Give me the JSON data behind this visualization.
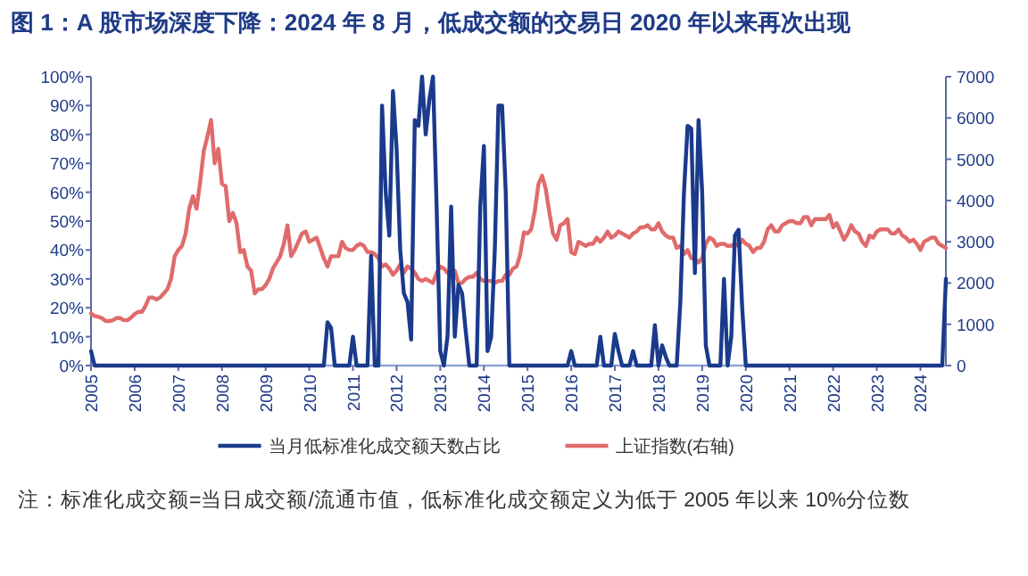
{
  "chart_data": {
    "type": "line",
    "title": "图 1：A 股市场深度下降：2024 年 8 月，低成交额的交易日 2020 年以来再次出现",
    "annotations": [
      "注：标准化成交额=当日成交额/流通市值，低标准化成交额定义为低于 2005 年以来 10%分位数"
    ],
    "x": [
      "2005-01",
      "2005-02",
      "2005-03",
      "2005-04",
      "2005-05",
      "2005-06",
      "2005-07",
      "2005-08",
      "2005-09",
      "2005-10",
      "2005-11",
      "2005-12",
      "2006-01",
      "2006-02",
      "2006-03",
      "2006-04",
      "2006-05",
      "2006-06",
      "2006-07",
      "2006-08",
      "2006-09",
      "2006-10",
      "2006-11",
      "2006-12",
      "2007-01",
      "2007-02",
      "2007-03",
      "2007-04",
      "2007-05",
      "2007-06",
      "2007-07",
      "2007-08",
      "2007-09",
      "2007-10",
      "2007-11",
      "2007-12",
      "2008-01",
      "2008-02",
      "2008-03",
      "2008-04",
      "2008-05",
      "2008-06",
      "2008-07",
      "2008-08",
      "2008-09",
      "2008-10",
      "2008-11",
      "2008-12",
      "2009-01",
      "2009-02",
      "2009-03",
      "2009-04",
      "2009-05",
      "2009-06",
      "2009-07",
      "2009-08",
      "2009-09",
      "2009-10",
      "2009-11",
      "2009-12",
      "2010-01",
      "2010-02",
      "2010-03",
      "2010-04",
      "2010-05",
      "2010-06",
      "2010-07",
      "2010-08",
      "2010-09",
      "2010-10",
      "2010-11",
      "2010-12",
      "2011-01",
      "2011-02",
      "2011-03",
      "2011-04",
      "2011-05",
      "2011-06",
      "2011-07",
      "2011-08",
      "2011-09",
      "2011-10",
      "2011-11",
      "2011-12",
      "2012-01",
      "2012-02",
      "2012-03",
      "2012-04",
      "2012-05",
      "2012-06",
      "2012-07",
      "2012-08",
      "2012-09",
      "2012-10",
      "2012-11",
      "2012-12",
      "2013-01",
      "2013-02",
      "2013-03",
      "2013-04",
      "2013-05",
      "2013-06",
      "2013-07",
      "2013-08",
      "2013-09",
      "2013-10",
      "2013-11",
      "2013-12",
      "2014-01",
      "2014-02",
      "2014-03",
      "2014-04",
      "2014-05",
      "2014-06",
      "2014-07",
      "2014-08",
      "2014-09",
      "2014-10",
      "2014-11",
      "2014-12",
      "2015-01",
      "2015-02",
      "2015-03",
      "2015-04",
      "2015-05",
      "2015-06",
      "2015-07",
      "2015-08",
      "2015-09",
      "2015-10",
      "2015-11",
      "2015-12",
      "2016-01",
      "2016-02",
      "2016-03",
      "2016-04",
      "2016-05",
      "2016-06",
      "2016-07",
      "2016-08",
      "2016-09",
      "2016-10",
      "2016-11",
      "2016-12",
      "2017-01",
      "2017-02",
      "2017-03",
      "2017-04",
      "2017-05",
      "2017-06",
      "2017-07",
      "2017-08",
      "2017-09",
      "2017-10",
      "2017-11",
      "2017-12",
      "2018-01",
      "2018-02",
      "2018-03",
      "2018-04",
      "2018-05",
      "2018-06",
      "2018-07",
      "2018-08",
      "2018-09",
      "2018-10",
      "2018-11",
      "2018-12",
      "2019-01",
      "2019-02",
      "2019-03",
      "2019-04",
      "2019-05",
      "2019-06",
      "2019-07",
      "2019-08",
      "2019-09",
      "2019-10",
      "2019-11",
      "2019-12",
      "2020-01",
      "2020-02",
      "2020-03",
      "2020-04",
      "2020-05",
      "2020-06",
      "2020-07",
      "2020-08",
      "2020-09",
      "2020-10",
      "2020-11",
      "2020-12",
      "2021-01",
      "2021-02",
      "2021-03",
      "2021-04",
      "2021-05",
      "2021-06",
      "2021-07",
      "2021-08",
      "2021-09",
      "2021-10",
      "2021-11",
      "2021-12",
      "2022-01",
      "2022-02",
      "2022-03",
      "2022-04",
      "2022-05",
      "2022-06",
      "2022-07",
      "2022-08",
      "2022-09",
      "2022-10",
      "2022-11",
      "2022-12",
      "2023-01",
      "2023-02",
      "2023-03",
      "2023-04",
      "2023-05",
      "2023-06",
      "2023-07",
      "2023-08",
      "2023-09",
      "2023-10",
      "2023-11",
      "2023-12",
      "2024-01",
      "2024-02",
      "2024-03",
      "2024-04",
      "2024-05",
      "2024-06",
      "2024-07",
      "2024-08"
    ],
    "xlim": [
      "2005-01",
      "2024-08"
    ],
    "xticks": [
      "2005",
      "2006",
      "2007",
      "2008",
      "2009",
      "2010",
      "2011",
      "2012",
      "2013",
      "2014",
      "2015",
      "2016",
      "2017",
      "2018",
      "2019",
      "2020",
      "2021",
      "2022",
      "2023",
      "2024"
    ],
    "ylim": [
      0,
      100
    ],
    "yticks": [
      {
        "value": 0,
        "label": "0%"
      },
      {
        "value": 10,
        "label": "10%"
      },
      {
        "value": 20,
        "label": "20%"
      },
      {
        "value": 30,
        "label": "30%"
      },
      {
        "value": 40,
        "label": "40%"
      },
      {
        "value": 50,
        "label": "50%"
      },
      {
        "value": 60,
        "label": "60%"
      },
      {
        "value": 70,
        "label": "70%"
      },
      {
        "value": 80,
        "label": "80%"
      },
      {
        "value": 90,
        "label": "90%"
      },
      {
        "value": 100,
        "label": "100%"
      }
    ],
    "y2lim": [
      0,
      7000
    ],
    "y2ticks": [
      0,
      1000,
      2000,
      3000,
      4000,
      5000,
      6000,
      7000
    ],
    "grid": false,
    "legend": "bottom",
    "marker": "none",
    "line_style": "solid",
    "series": [
      {
        "name": "当月低标准化成交额天数占比",
        "color": "#1a3a8c",
        "values": [
          5,
          0,
          0,
          0,
          0,
          0,
          0,
          0,
          0,
          0,
          0,
          0,
          0,
          0,
          0,
          0,
          0,
          0,
          0,
          0,
          0,
          0,
          0,
          0,
          0,
          0,
          0,
          0,
          0,
          0,
          0,
          0,
          0,
          0,
          0,
          0,
          0,
          0,
          0,
          0,
          0,
          0,
          0,
          0,
          0,
          0,
          0,
          0,
          0,
          0,
          0,
          0,
          0,
          0,
          0,
          0,
          0,
          0,
          0,
          0,
          0,
          0,
          0,
          0,
          0,
          15,
          13,
          0,
          0,
          0,
          0,
          0,
          10,
          0,
          0,
          0,
          0,
          38,
          0,
          0,
          90,
          60,
          45,
          95,
          75,
          40,
          25,
          22,
          9,
          85,
          83,
          100,
          80,
          92,
          100,
          55,
          5,
          0,
          10,
          55,
          10,
          28,
          25,
          12,
          0,
          0,
          0,
          55,
          76,
          5,
          10,
          40,
          90,
          90,
          60,
          0,
          0,
          0,
          0,
          0,
          0,
          0,
          0,
          0,
          0,
          0,
          0,
          0,
          0,
          0,
          0,
          0,
          5,
          0,
          0,
          0,
          0,
          0,
          0,
          0,
          10,
          0,
          0,
          0,
          11,
          5,
          0,
          0,
          0,
          5,
          0,
          0,
          0,
          0,
          0,
          14,
          0,
          7,
          3,
          0,
          0,
          0,
          22,
          60,
          83,
          82,
          32,
          85,
          60,
          7,
          0,
          0,
          0,
          0,
          30,
          0,
          10,
          45,
          47,
          20,
          0,
          0,
          0,
          0,
          0,
          0,
          0,
          0,
          0,
          0,
          0,
          0,
          0,
          0,
          0,
          0,
          0,
          0,
          0,
          0,
          0,
          0,
          0,
          0,
          0,
          0,
          0,
          0,
          0,
          0,
          0,
          0,
          0,
          0,
          0,
          0,
          0,
          0,
          0,
          0,
          0,
          0,
          0,
          0,
          0,
          0,
          0,
          0,
          0,
          0,
          0,
          0,
          0,
          0,
          0,
          30
        ]
      },
      {
        "name": "上证指数(右轴)",
        "color": "#e06b6b",
        "axis": "y2",
        "values": [
          1260,
          1200,
          1180,
          1150,
          1080,
          1080,
          1100,
          1150,
          1150,
          1100,
          1100,
          1160,
          1250,
          1300,
          1300,
          1450,
          1650,
          1650,
          1600,
          1650,
          1750,
          1850,
          2100,
          2650,
          2800,
          2900,
          3200,
          3800,
          4100,
          3800,
          4450,
          5200,
          5550,
          5950,
          4900,
          5250,
          4400,
          4350,
          3500,
          3700,
          3450,
          2750,
          2800,
          2400,
          2300,
          1750,
          1850,
          1850,
          1950,
          2100,
          2350,
          2500,
          2650,
          2950,
          3400,
          2650,
          2800,
          3000,
          3200,
          3250,
          3000,
          3050,
          3100,
          2850,
          2600,
          2400,
          2650,
          2650,
          2650,
          3000,
          2850,
          2800,
          2800,
          2900,
          2950,
          2900,
          2750,
          2750,
          2700,
          2600,
          2400,
          2450,
          2350,
          2200,
          2300,
          2450,
          2250,
          2400,
          2350,
          2250,
          2100,
          2050,
          2100,
          2050,
          2000,
          2250,
          2400,
          2350,
          2250,
          2200,
          2300,
          2000,
          2000,
          2100,
          2150,
          2150,
          2250,
          2100,
          2050,
          2050,
          2050,
          2000,
          2050,
          2050,
          2200,
          2200,
          2350,
          2400,
          2700,
          3230,
          3200,
          3300,
          3750,
          4400,
          4600,
          4280,
          3700,
          3200,
          3050,
          3400,
          3450,
          3550,
          2750,
          2700,
          3000,
          2950,
          2900,
          2950,
          2950,
          3100,
          3000,
          3100,
          3250,
          3100,
          3150,
          3250,
          3200,
          3150,
          3100,
          3200,
          3250,
          3350,
          3350,
          3400,
          3300,
          3300,
          3450,
          3250,
          3150,
          3100,
          3100,
          2850,
          2900,
          2700,
          2800,
          2600,
          2600,
          2500,
          2600,
          2950,
          3100,
          3050,
          2900,
          2950,
          2950,
          2900,
          2900,
          2950,
          2900,
          3050,
          2950,
          2900,
          2750,
          2850,
          2850,
          3000,
          3300,
          3400,
          3250,
          3250,
          3400,
          3450,
          3500,
          3500,
          3450,
          3450,
          3600,
          3600,
          3400,
          3550,
          3550,
          3550,
          3550,
          3650,
          3350,
          3450,
          3250,
          3050,
          3200,
          3400,
          3250,
          3200,
          3000,
          2900,
          3150,
          3100,
          3250,
          3300,
          3300,
          3300,
          3200,
          3200,
          3300,
          3150,
          3100,
          3000,
          3050,
          2950,
          2800,
          3000,
          3050,
          3100,
          3100,
          2950,
          2900,
          2850
        ]
      }
    ]
  }
}
